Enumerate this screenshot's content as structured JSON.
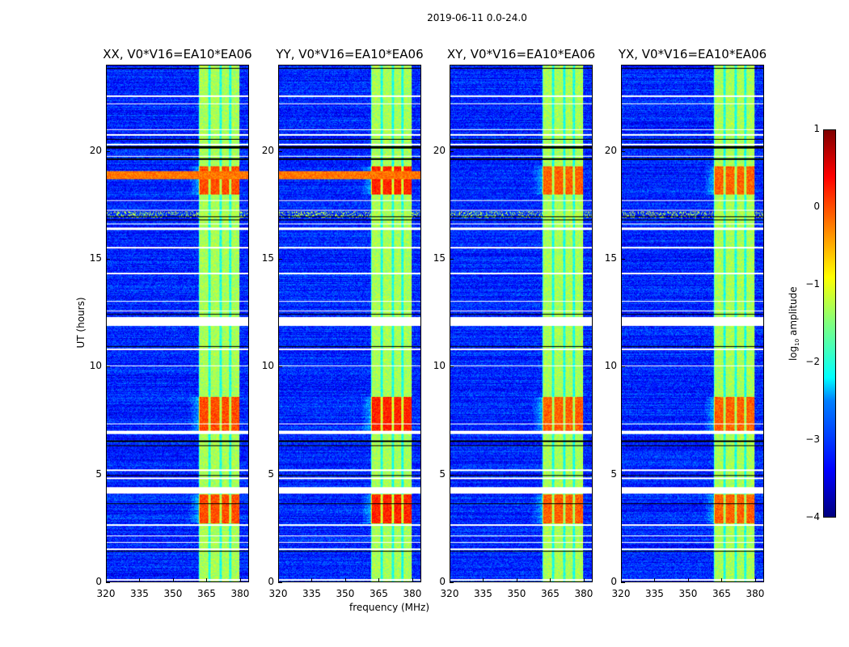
{
  "suptitle": "2019-06-11 0.0-24.0",
  "chart_data": {
    "type": "heatmap",
    "xlabel": "frequency (MHz)",
    "ylabel": "UT (hours)",
    "xlim": [
      320,
      384
    ],
    "ylim": [
      0,
      24
    ],
    "xticks": [
      "320",
      "335",
      "350",
      "365",
      "380"
    ],
    "xtick_values": [
      320,
      335,
      350,
      365,
      380
    ],
    "yticks": [
      "0",
      "5",
      "10",
      "15",
      "20"
    ],
    "ytick_values": [
      0,
      5,
      10,
      15,
      20
    ],
    "panels": [
      {
        "title": "XX, V0*V16=EA10*EA06",
        "event_boost": 1.3,
        "rfi_band_19h": true
      },
      {
        "title": "YY, V0*V16=EA10*EA06",
        "event_boost": 1.5,
        "rfi_band_19h": true
      },
      {
        "title": "XY, V0*V16=EA10*EA06",
        "event_boost": 1.2,
        "rfi_band_19h": false
      },
      {
        "title": "YX, V0*V16=EA10*EA06",
        "event_boost": 1.2,
        "rfi_band_19h": false
      }
    ],
    "background_log_amp": -3.2,
    "band_MHz": [
      361.5,
      380
    ],
    "band_log_amp": -1.3,
    "band_channels_MHz": [
      [
        362,
        366
      ],
      [
        367,
        371
      ],
      [
        372,
        375.5
      ],
      [
        376.5,
        380
      ]
    ],
    "bright_intervals_h": [
      [
        2.7,
        4.05
      ],
      [
        7.0,
        8.6
      ],
      [
        18.0,
        19.3
      ]
    ],
    "flagged_white_h": [
      [
        0.05,
        0.12
      ],
      [
        1.45,
        1.55
      ],
      [
        1.8,
        1.85
      ],
      [
        2.1,
        2.15
      ],
      [
        2.6,
        2.65
      ],
      [
        4.1,
        4.4
      ],
      [
        4.75,
        4.82
      ],
      [
        5.15,
        5.2
      ],
      [
        6.85,
        7.0
      ],
      [
        7.3,
        7.35
      ],
      [
        10.0,
        10.05
      ],
      [
        10.75,
        10.85
      ],
      [
        11.9,
        12.3
      ],
      [
        12.55,
        12.6
      ],
      [
        13.0,
        13.05
      ],
      [
        14.3,
        14.35
      ],
      [
        15.5,
        15.55
      ],
      [
        16.35,
        16.45
      ],
      [
        16.6,
        16.65
      ],
      [
        17.25,
        17.3
      ],
      [
        17.7,
        17.75
      ],
      [
        19.75,
        19.8
      ],
      [
        20.3,
        20.35
      ],
      [
        20.75,
        20.8
      ],
      [
        21.0,
        21.05
      ],
      [
        22.2,
        22.25
      ],
      [
        22.55,
        22.6
      ]
    ],
    "flagged_black_h": [
      [
        1.38,
        1.42
      ],
      [
        3.6,
        3.65
      ],
      [
        4.9,
        4.95
      ],
      [
        6.3,
        6.35
      ],
      [
        6.5,
        6.55
      ],
      [
        10.9,
        10.95
      ],
      [
        12.0,
        12.05
      ],
      [
        12.4,
        12.45
      ],
      [
        16.8,
        16.85
      ],
      [
        16.95,
        17.0
      ],
      [
        19.6,
        19.7
      ],
      [
        20.15,
        20.25
      ],
      [
        20.55,
        20.6
      ],
      [
        23.85,
        23.9
      ]
    ],
    "colorbar": {
      "label": "log10 amplitude",
      "label_main": "log",
      "label_sub": "10",
      "label_rest": " amplitude",
      "range": [
        -4,
        1
      ],
      "ticks": [
        "1",
        "0",
        "−1",
        "−2",
        "−3",
        "−4"
      ],
      "tick_values": [
        1,
        0,
        -1,
        -2,
        -3,
        -4
      ],
      "colormap": "jet"
    }
  }
}
